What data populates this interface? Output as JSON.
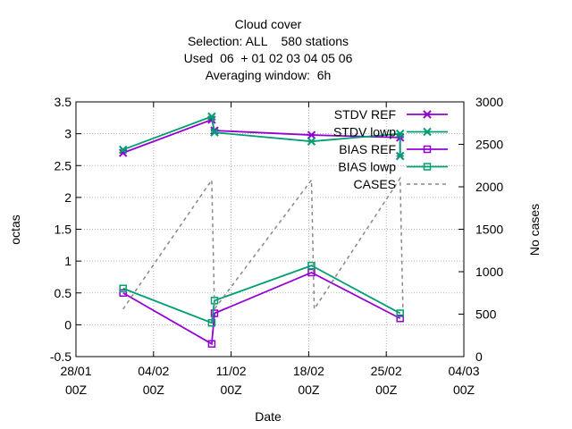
{
  "chart_data": {
    "type": "line",
    "title_lines": [
      "Cloud cover",
      "Selection: ALL    580 stations",
      "Used  06  + 01 02 03 04 05 06",
      "Averaging window:  6h"
    ],
    "xlabel": "Date",
    "ylabel": "octas",
    "y2label": "No cases",
    "xticks": [
      {
        "day": 0,
        "line1": "28/01",
        "line2": "00Z"
      },
      {
        "day": 7,
        "line1": "04/02",
        "line2": "00Z"
      },
      {
        "day": 14,
        "line1": "11/02",
        "line2": "00Z"
      },
      {
        "day": 21,
        "line1": "18/02",
        "line2": "00Z"
      },
      {
        "day": 28,
        "line1": "25/02",
        "line2": "00Z"
      },
      {
        "day": 35,
        "line1": "04/03",
        "line2": "00Z"
      }
    ],
    "xlim": [
      0,
      35
    ],
    "ylim": [
      -0.5,
      3.5
    ],
    "yticks": [
      "-0.5",
      "0",
      "0.5",
      "1",
      "1.5",
      "2",
      "2.5",
      "3",
      "3.5"
    ],
    "y2lim": [
      0,
      3000
    ],
    "y2ticks": [
      "0",
      "500",
      "1000",
      "1500",
      "2000",
      "2500",
      "3000"
    ],
    "grid": true,
    "legend_position": "top-right",
    "series": [
      {
        "name": "STDV REF",
        "axis": "y1",
        "color": "#9400d3",
        "marker": "x",
        "points": [
          [
            4.25,
            2.7
          ],
          [
            12.25,
            3.22
          ],
          [
            12.5,
            3.05
          ],
          [
            21.25,
            2.98
          ],
          [
            29.25,
            2.94
          ],
          [
            29.25,
            2.65
          ]
        ]
      },
      {
        "name": "STDV lowp",
        "axis": "y1",
        "color": "#009e73",
        "marker": "x",
        "points": [
          [
            4.25,
            2.75
          ],
          [
            12.25,
            3.27
          ],
          [
            12.5,
            3.02
          ],
          [
            21.25,
            2.88
          ],
          [
            29.25,
            3.0
          ],
          [
            29.25,
            2.65
          ]
        ]
      },
      {
        "name": "BIAS REF",
        "axis": "y1",
        "color": "#9400d3",
        "marker": "square",
        "points": [
          [
            4.25,
            0.5
          ],
          [
            12.25,
            -0.3
          ],
          [
            12.5,
            0.18
          ],
          [
            21.25,
            0.82
          ],
          [
            29.25,
            0.1
          ]
        ]
      },
      {
        "name": "BIAS lowp",
        "axis": "y1",
        "color": "#009e73",
        "marker": "square",
        "points": [
          [
            4.25,
            0.57
          ],
          [
            12.25,
            0.03
          ],
          [
            12.5,
            0.38
          ],
          [
            21.25,
            0.93
          ],
          [
            29.25,
            0.18
          ]
        ]
      },
      {
        "name": "CASES",
        "axis": "y2",
        "color": "#888888",
        "marker": "none",
        "dashed": true,
        "points": [
          [
            4.25,
            560
          ],
          [
            12.25,
            2080
          ],
          [
            12.5,
            560
          ],
          [
            21.25,
            2080
          ],
          [
            21.5,
            560
          ],
          [
            29.25,
            2100
          ],
          [
            29.5,
            580
          ]
        ]
      }
    ]
  }
}
